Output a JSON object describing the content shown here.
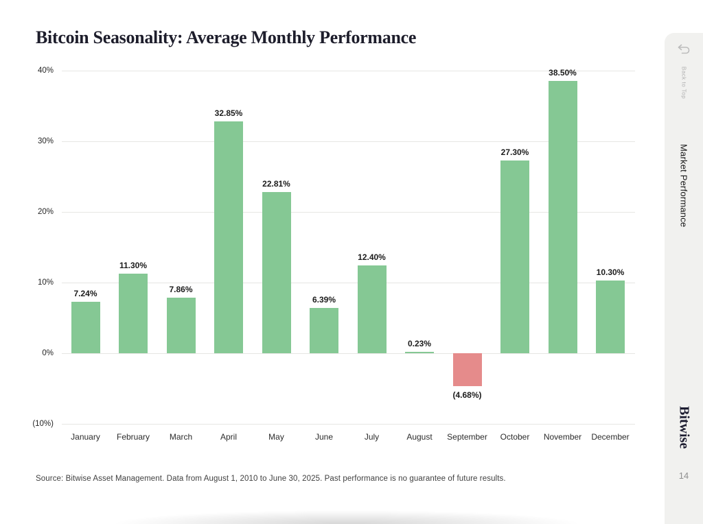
{
  "page": {
    "source": "Source: Bitwise Asset Management. Data from August 1, 2010 to June 30, 2025. Past performance is no guarantee of future results."
  },
  "chart_data": {
    "type": "bar",
    "title": "Bitcoin Seasonality: Average Monthly Performance",
    "categories": [
      "January",
      "February",
      "March",
      "April",
      "May",
      "June",
      "July",
      "August",
      "September",
      "October",
      "November",
      "December"
    ],
    "values": [
      7.24,
      11.3,
      7.86,
      32.85,
      22.81,
      6.39,
      12.4,
      0.23,
      -4.68,
      27.3,
      38.5,
      10.3
    ],
    "value_labels": [
      "7.24%",
      "11.30%",
      "7.86%",
      "32.85%",
      "22.81%",
      "6.39%",
      "12.40%",
      "0.23%",
      "(4.68%)",
      "27.30%",
      "38.50%",
      "10.30%"
    ],
    "xlabel": "",
    "ylabel": "",
    "ylim": [
      -10,
      40
    ],
    "yticks": [
      {
        "value": 40,
        "label": "40%"
      },
      {
        "value": 30,
        "label": "30%"
      },
      {
        "value": 20,
        "label": "20%"
      },
      {
        "value": 10,
        "label": "10%"
      },
      {
        "value": 0,
        "label": "0%"
      },
      {
        "value": -10,
        "label": "(10%)"
      }
    ],
    "grid": true,
    "legend": false,
    "positive_color": "#85c894",
    "negative_color": "#e58b8b"
  },
  "sidebar": {
    "back_to_top_label": "Back to Top",
    "section_label": "Market Performance",
    "brand": "Bitwise",
    "page_number": "14",
    "background_color": "#f1f1ef"
  }
}
